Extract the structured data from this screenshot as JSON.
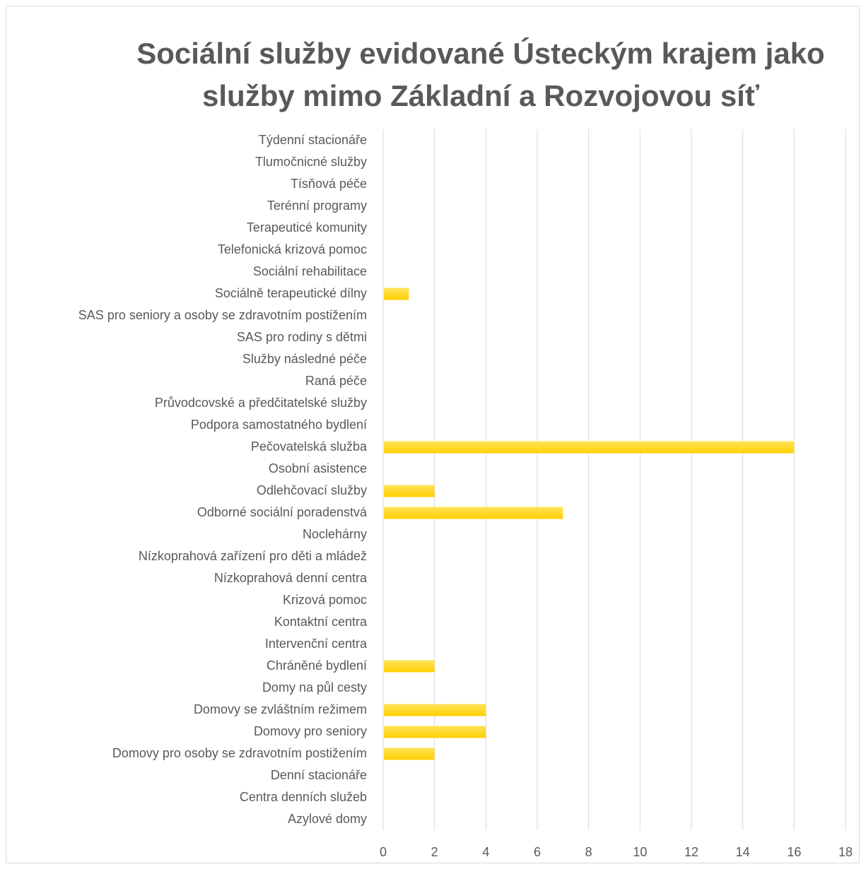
{
  "chart_data": {
    "type": "bar",
    "orientation": "horizontal",
    "title": "Sociální služby evidované Ústeckým krajem jako služby mimo Základní a Rozvojovou síť",
    "title_lines": [
      "Sociální služby evidované Ústeckým krajem jako",
      "služby mimo Základní a Rozvojovou síť"
    ],
    "categories": [
      "Týdenní stacionáře",
      "Tlumočnicné služby",
      "Tísňová péče",
      "Terénní programy",
      "Terapeuticé komunity",
      "Telefonická krizová pomoc",
      "Sociální rehabilitace",
      "Sociálně terapeutické dílny",
      "SAS pro seniory a osoby se zdravotním postižením",
      "SAS pro rodiny s dětmi",
      "Služby následné péče",
      "Raná péče",
      "Průvodcovské a předčitatelské služby",
      "Podpora samostatného bydlení",
      "Pečovatelská služba",
      "Osobní asistence",
      "Odlehčovací služby",
      "Odborné sociální poradenstvá",
      "Noclehárny",
      "Nízkoprahová zařízení pro děti a mládež",
      "Nízkoprahová denní centra",
      "Krizová pomoc",
      "Kontaktní centra",
      "Intervenční centra",
      "Chráněné bydlení",
      "Domy na půl cesty",
      "Domovy se zvláštním režimem",
      "Domovy pro seniory",
      "Domovy pro osoby se zdravotním postižením",
      "Denní stacionáře",
      "Centra denních služeb",
      "Azylové domy"
    ],
    "values": [
      0,
      0,
      0,
      0,
      0,
      0,
      0,
      1,
      0,
      0,
      0,
      0,
      0,
      0,
      16,
      0,
      2,
      7,
      0,
      0,
      0,
      0,
      0,
      0,
      2,
      0,
      4,
      4,
      2,
      0,
      0,
      0
    ],
    "xlim": [
      0,
      18
    ],
    "xticks": [
      0,
      2,
      4,
      6,
      8,
      10,
      12,
      14,
      16,
      18
    ],
    "grid": true,
    "legend": "none",
    "bar_color": "#FFD000",
    "bar_color_light": "#FFE35A",
    "grid_color": "#d9d9d9",
    "text_color": "#595959"
  }
}
